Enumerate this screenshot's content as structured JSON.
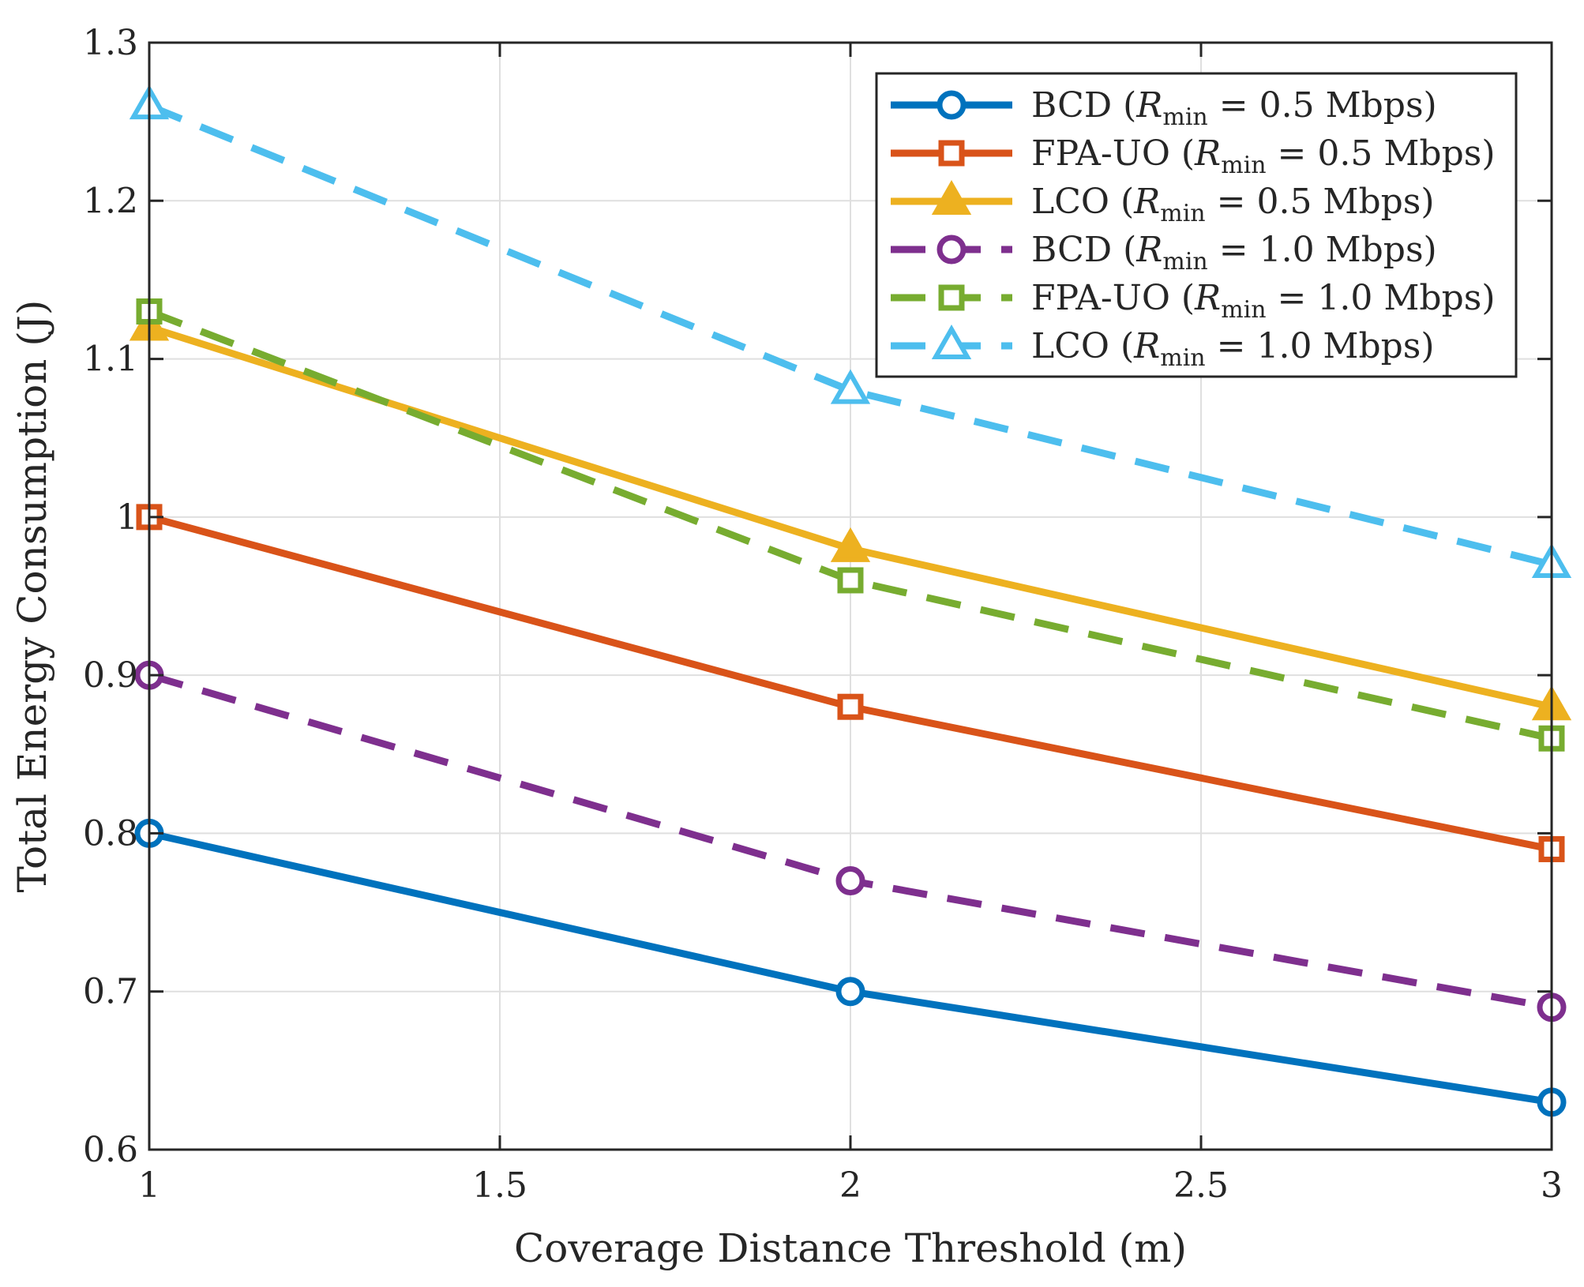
{
  "chart_data": {
    "type": "line",
    "title": "",
    "xlabel": "Coverage Distance Threshold (m)",
    "ylabel": "Total Energy Consumption (J)",
    "xlim": [
      1,
      3
    ],
    "ylim": [
      0.6,
      1.3
    ],
    "grid": true,
    "legend_position": "top-right",
    "x": [
      1,
      2,
      3
    ],
    "xticks": [
      "1",
      "1.5",
      "2",
      "2.5",
      "3"
    ],
    "yticks": [
      "0.6",
      "0.7",
      "0.8",
      "0.9",
      "1",
      "1.1",
      "1.2",
      "1.3"
    ],
    "series": [
      {
        "name": "BCD (Rmin = 0.5 Mbps)",
        "label_main": "BCD (",
        "label_rate": " = 0.5 Mbps)",
        "values": [
          0.8,
          0.7,
          0.63
        ],
        "color": "#0072BD",
        "dashed": false,
        "marker": "circle",
        "filled": false
      },
      {
        "name": "FPA-UO (Rmin = 0.5 Mbps)",
        "label_main": "FPA-UO (",
        "label_rate": " = 0.5 Mbps)",
        "values": [
          1.0,
          0.88,
          0.79
        ],
        "color": "#D95319",
        "dashed": false,
        "marker": "square",
        "filled": false
      },
      {
        "name": "LCO (Rmin = 0.5 Mbps)",
        "label_main": "LCO (",
        "label_rate": " = 0.5 Mbps)",
        "values": [
          1.12,
          0.98,
          0.88
        ],
        "color": "#EDB120",
        "dashed": false,
        "marker": "triangle",
        "filled": true
      },
      {
        "name": "BCD (Rmin = 1.0 Mbps)",
        "label_main": "BCD (",
        "label_rate": " = 1.0 Mbps)",
        "values": [
          0.9,
          0.77,
          0.69
        ],
        "color": "#7E2F8E",
        "dashed": true,
        "marker": "circle",
        "filled": false
      },
      {
        "name": "FPA-UO (Rmin = 1.0 Mbps)",
        "label_main": "FPA-UO (",
        "label_rate": " = 1.0 Mbps)",
        "values": [
          1.13,
          0.96,
          0.86
        ],
        "color": "#77AC30",
        "dashed": true,
        "marker": "square",
        "filled": false
      },
      {
        "name": "LCO (Rmin = 1.0 Mbps)",
        "label_main": "LCO (",
        "label_rate": " = 1.0 Mbps)",
        "values": [
          1.26,
          1.08,
          0.97
        ],
        "color": "#4DBEEE",
        "dashed": true,
        "marker": "triangle",
        "filled": false
      }
    ],
    "legend_symbol": "R",
    "legend_subscript": "min"
  }
}
